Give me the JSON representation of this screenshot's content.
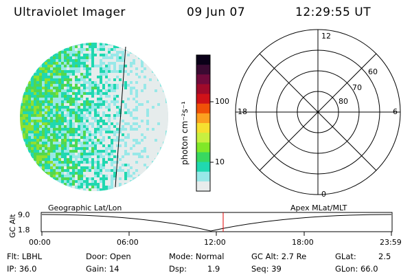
{
  "header": {
    "instrument": "Ultraviolet Imager",
    "date": "09 Jun 07",
    "time": "12:29:55 UT"
  },
  "colorbar": {
    "label": "photon cm⁻²s⁻¹",
    "ticks": [
      "100",
      "10"
    ],
    "colors": [
      "#0a0018",
      "#3a0a32",
      "#700a3c",
      "#a00a2a",
      "#d01218",
      "#f05008",
      "#fca020",
      "#f6e030",
      "#c8f040",
      "#80e828",
      "#38d860",
      "#20d8b0",
      "#98e8e8",
      "#e8ecec"
    ]
  },
  "polar": {
    "mlt_labels": {
      "top": "12",
      "bottom": "0",
      "left": "18",
      "right": "6"
    },
    "lat_labels": [
      "60",
      "70",
      "80"
    ]
  },
  "strip": {
    "left_label": "Geographic Lat/Lon",
    "right_label": "Apex MLat/MLT",
    "ylabel": "GC Alt",
    "y_ticks": [
      "9.0",
      "1.8"
    ],
    "x_ticks": [
      "00:00",
      "06:00",
      "12:00",
      "18:00",
      "23:59"
    ],
    "marker_time": "12:29:55"
  },
  "footer": {
    "flt": "Flt: LBHL",
    "ip": "IP: 36.0",
    "door": "Door: Open",
    "gain": "Gain: 14",
    "mode": "Mode: Normal",
    "dsp": "Dsp:",
    "dsp_value": "1.9",
    "gcalt": "GC Alt: 2.7 Re",
    "seq": "Seq: 39",
    "glat": "GLat:",
    "glat_value": "2.5",
    "glon": "GLon: 66.0"
  }
}
